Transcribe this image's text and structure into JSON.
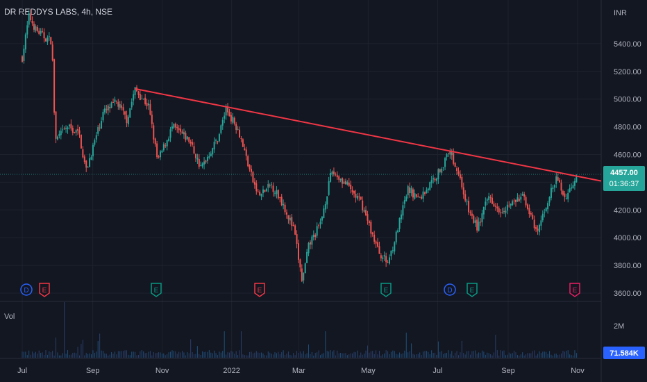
{
  "title": "DR REDDYS LABS, 4h, NSE",
  "currency": "INR",
  "volume_label": "Vol",
  "price": {
    "last": "4457.00",
    "countdown": "01:36:37"
  },
  "volume_axis": {
    "ticks": [
      "2M"
    ],
    "last": "71.584K"
  },
  "events": [
    {
      "t": "D",
      "x": "Jul 2021",
      "color": "#2962ff"
    },
    {
      "t": "E",
      "x": "Jul 2021",
      "color": "#f23645"
    },
    {
      "t": "E",
      "x": "Oct 2021",
      "color": "#089981"
    },
    {
      "t": "E",
      "x": "Jan 2022",
      "color": "#f23645"
    },
    {
      "t": "E",
      "x": "May 2022",
      "color": "#089981"
    },
    {
      "t": "D",
      "x": "Jul 2022",
      "color": "#2962ff"
    },
    {
      "t": "E",
      "x": "Jul 2022",
      "color": "#089981"
    },
    {
      "t": "E",
      "x": "Oct 2022",
      "color": "#e91e63"
    }
  ],
  "colors": {
    "up": "#26a69a",
    "down": "#ef5350",
    "trendline": "#f23645",
    "background": "#131722"
  },
  "chart_data": {
    "type": "candlestick",
    "x_axis_ticks": [
      "Jul",
      "Sep",
      "Nov",
      "2022",
      "Mar",
      "May",
      "Jul",
      "Sep",
      "Nov"
    ],
    "y_axis_ticks": [
      "5400.00",
      "5200.00",
      "5000.00",
      "4800.00",
      "4600.00",
      "4400.00",
      "4200.00",
      "4000.00",
      "3800.00",
      "3600.00"
    ],
    "ylim": [
      3600,
      5800
    ],
    "price_path": [
      [
        "2021-07-01",
        5300
      ],
      [
        "2021-07-07",
        5600
      ],
      [
        "2021-07-13",
        5500
      ],
      [
        "2021-07-20",
        5450
      ],
      [
        "2021-07-27",
        5420
      ],
      [
        "2021-07-30",
        4700
      ],
      [
        "2021-08-10",
        4800
      ],
      [
        "2021-08-20",
        4750
      ],
      [
        "2021-08-26",
        4480
      ],
      [
        "2021-09-10",
        4900
      ],
      [
        "2021-09-22",
        4980
      ],
      [
        "2021-10-01",
        4850
      ],
      [
        "2021-10-08",
        5070
      ],
      [
        "2021-10-20",
        4950
      ],
      [
        "2021-10-28",
        4550
      ],
      [
        "2021-11-10",
        4800
      ],
      [
        "2021-11-25",
        4700
      ],
      [
        "2021-12-05",
        4500
      ],
      [
        "2021-12-20",
        4720
      ],
      [
        "2021-12-27",
        4930
      ],
      [
        "2022-01-07",
        4780
      ],
      [
        "2022-01-20",
        4400
      ],
      [
        "2022-01-25",
        4300
      ],
      [
        "2022-02-05",
        4380
      ],
      [
        "2022-02-15",
        4250
      ],
      [
        "2022-02-25",
        4050
      ],
      [
        "2022-03-04",
        3680
      ],
      [
        "2022-03-10",
        3950
      ],
      [
        "2022-03-20",
        4100
      ],
      [
        "2022-03-30",
        4480
      ],
      [
        "2022-04-10",
        4400
      ],
      [
        "2022-04-25",
        4250
      ],
      [
        "2022-05-10",
        3900
      ],
      [
        "2022-05-18",
        3820
      ],
      [
        "2022-05-25",
        4000
      ],
      [
        "2022-06-05",
        4350
      ],
      [
        "2022-06-15",
        4280
      ],
      [
        "2022-06-30",
        4450
      ],
      [
        "2022-07-12",
        4620
      ],
      [
        "2022-07-20",
        4450
      ],
      [
        "2022-07-28",
        4200
      ],
      [
        "2022-08-05",
        4070
      ],
      [
        "2022-08-15",
        4300
      ],
      [
        "2022-08-25",
        4200
      ],
      [
        "2022-09-05",
        4250
      ],
      [
        "2022-09-15",
        4300
      ],
      [
        "2022-09-26",
        4020
      ],
      [
        "2022-10-07",
        4300
      ],
      [
        "2022-10-14",
        4430
      ],
      [
        "2022-10-21",
        4280
      ],
      [
        "2022-10-28",
        4400
      ],
      [
        "2022-10-31",
        4457
      ]
    ],
    "trendline": [
      [
        "2021-10-08",
        5075
      ],
      [
        "2022-11-15",
        4420
      ]
    ],
    "current_price": 4457.0
  }
}
